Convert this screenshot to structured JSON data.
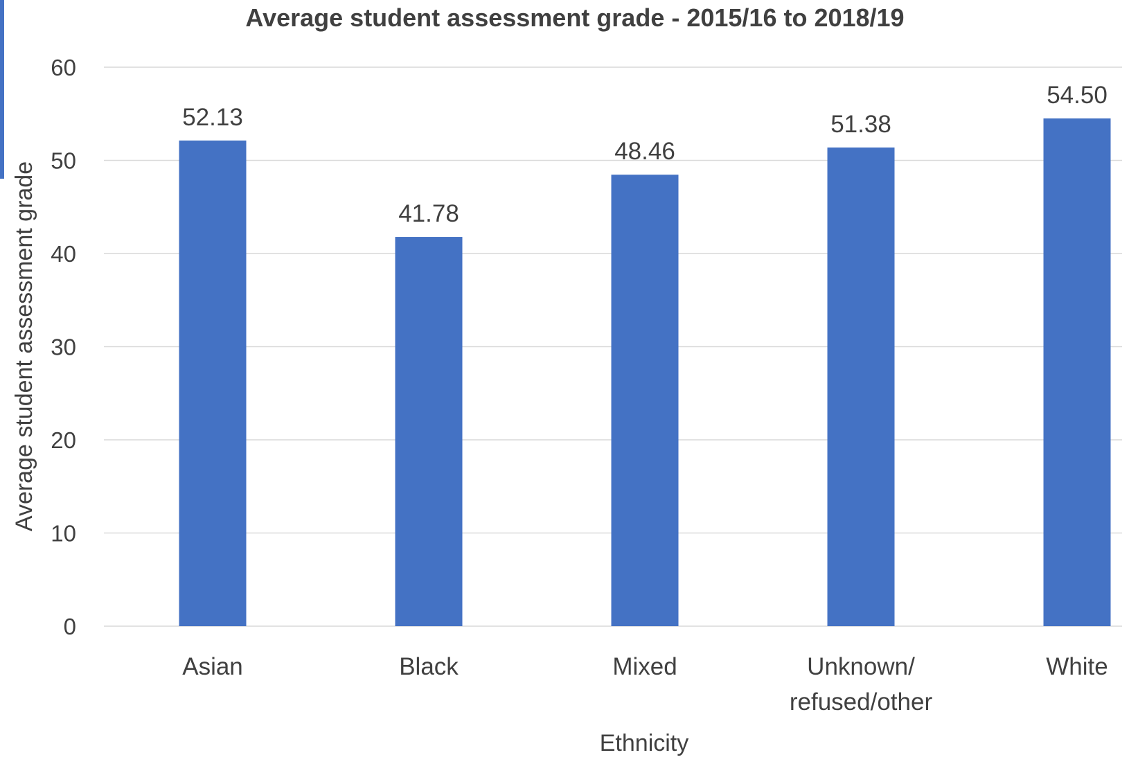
{
  "colors": {
    "bar": "#4472C4",
    "accent": "#4472C4",
    "grid": "#D9D9D9",
    "text": "#404040"
  },
  "chart_data": {
    "type": "bar",
    "title": "Average student assessment grade - 2015/16 to 2018/19",
    "xlabel": "Ethnicity",
    "ylabel": "Average student assessment grade",
    "categories": [
      [
        "Asian"
      ],
      [
        "Black"
      ],
      [
        "Mixed"
      ],
      [
        "Unknown/",
        "refused/other"
      ],
      [
        "White"
      ]
    ],
    "values": [
      52.13,
      41.78,
      48.46,
      51.38,
      54.5
    ],
    "data_labels": [
      "52.13",
      "41.78",
      "48.46",
      "51.38",
      "54.50"
    ],
    "ylim": [
      0,
      60
    ],
    "yticks": [
      0,
      10,
      20,
      30,
      40,
      50,
      60
    ],
    "grid": true,
    "legend": "none"
  }
}
